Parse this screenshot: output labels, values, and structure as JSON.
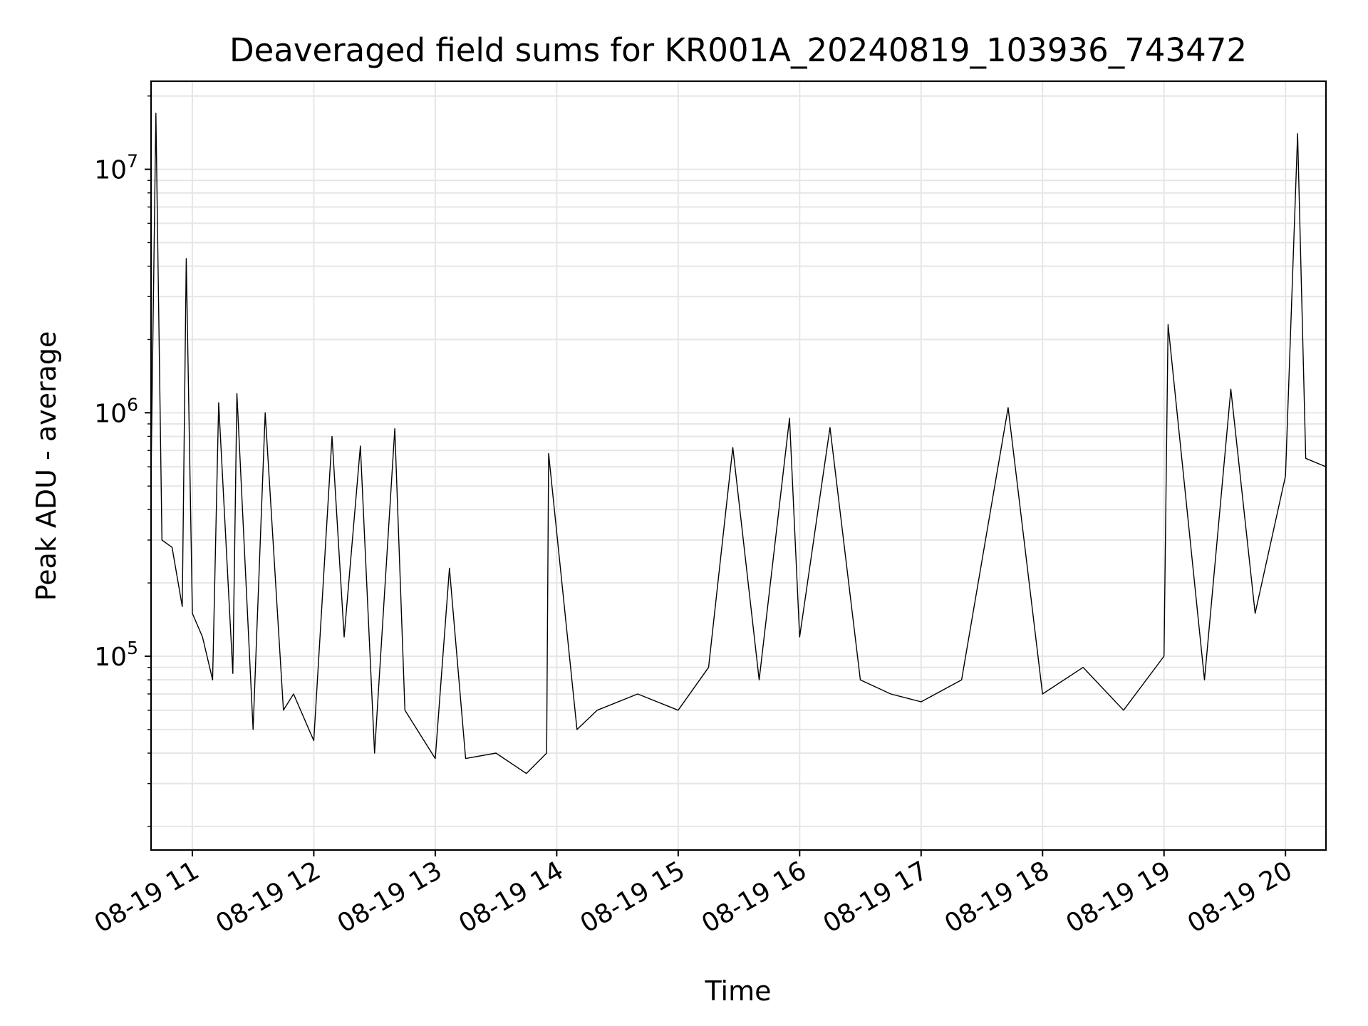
{
  "chart_data": {
    "type": "line",
    "title": "Deaveraged field sums for KR001A_20240819_103936_743472",
    "xlabel": "Time",
    "ylabel": "Peak ADU - average",
    "x_domain": [
      "2024-08-19T10:39:36",
      "2024-08-19T20:20:00"
    ],
    "ylim": [
      16000,
      23000000
    ],
    "yscale": "log",
    "grid": true,
    "x_ticks": [
      {
        "time": "2024-08-19T11:00:00",
        "label": "08-19 11"
      },
      {
        "time": "2024-08-19T12:00:00",
        "label": "08-19 12"
      },
      {
        "time": "2024-08-19T13:00:00",
        "label": "08-19 13"
      },
      {
        "time": "2024-08-19T14:00:00",
        "label": "08-19 14"
      },
      {
        "time": "2024-08-19T15:00:00",
        "label": "08-19 15"
      },
      {
        "time": "2024-08-19T16:00:00",
        "label": "08-19 16"
      },
      {
        "time": "2024-08-19T17:00:00",
        "label": "08-19 17"
      },
      {
        "time": "2024-08-19T18:00:00",
        "label": "08-19 18"
      },
      {
        "time": "2024-08-19T19:00:00",
        "label": "08-19 19"
      },
      {
        "time": "2024-08-19T20:00:00",
        "label": "08-19 20"
      }
    ],
    "y_ticks": [
      {
        "value": 100000,
        "base": "10",
        "exp": "5"
      },
      {
        "value": 1000000,
        "base": "10",
        "exp": "6"
      },
      {
        "value": 10000000,
        "base": "10",
        "exp": "7"
      }
    ],
    "series": [
      {
        "color": "#000000",
        "points": [
          [
            "2024-08-19T10:39:36",
            550000
          ],
          [
            "2024-08-19T10:42:00",
            17000000
          ],
          [
            "2024-08-19T10:45:00",
            300000
          ],
          [
            "2024-08-19T10:50:00",
            280000
          ],
          [
            "2024-08-19T10:55:00",
            160000
          ],
          [
            "2024-08-19T10:57:00",
            4300000
          ],
          [
            "2024-08-19T11:00:00",
            150000
          ],
          [
            "2024-08-19T11:05:00",
            120000
          ],
          [
            "2024-08-19T11:10:00",
            80000
          ],
          [
            "2024-08-19T11:13:00",
            1100000
          ],
          [
            "2024-08-19T11:20:00",
            85000
          ],
          [
            "2024-08-19T11:22:00",
            1200000
          ],
          [
            "2024-08-19T11:30:00",
            50000
          ],
          [
            "2024-08-19T11:36:00",
            1000000
          ],
          [
            "2024-08-19T11:45:00",
            60000
          ],
          [
            "2024-08-19T11:50:00",
            70000
          ],
          [
            "2024-08-19T12:00:00",
            45000
          ],
          [
            "2024-08-19T12:09:00",
            800000
          ],
          [
            "2024-08-19T12:15:00",
            120000
          ],
          [
            "2024-08-19T12:23:00",
            730000
          ],
          [
            "2024-08-19T12:30:00",
            40000
          ],
          [
            "2024-08-19T12:40:00",
            860000
          ],
          [
            "2024-08-19T12:45:00",
            60000
          ],
          [
            "2024-08-19T13:00:00",
            38000
          ],
          [
            "2024-08-19T13:07:00",
            230000
          ],
          [
            "2024-08-19T13:15:00",
            38000
          ],
          [
            "2024-08-19T13:30:00",
            40000
          ],
          [
            "2024-08-19T13:45:00",
            33000
          ],
          [
            "2024-08-19T13:55:00",
            40000
          ],
          [
            "2024-08-19T13:56:00",
            680000
          ],
          [
            "2024-08-19T14:10:00",
            50000
          ],
          [
            "2024-08-19T14:20:00",
            60000
          ],
          [
            "2024-08-19T14:40:00",
            70000
          ],
          [
            "2024-08-19T15:00:00",
            60000
          ],
          [
            "2024-08-19T15:15:00",
            90000
          ],
          [
            "2024-08-19T15:27:00",
            720000
          ],
          [
            "2024-08-19T15:40:00",
            80000
          ],
          [
            "2024-08-19T15:55:00",
            950000
          ],
          [
            "2024-08-19T16:00:00",
            120000
          ],
          [
            "2024-08-19T16:15:00",
            870000
          ],
          [
            "2024-08-19T16:30:00",
            80000
          ],
          [
            "2024-08-19T16:45:00",
            70000
          ],
          [
            "2024-08-19T17:00:00",
            65000
          ],
          [
            "2024-08-19T17:20:00",
            80000
          ],
          [
            "2024-08-19T17:43:00",
            1050000
          ],
          [
            "2024-08-19T18:00:00",
            70000
          ],
          [
            "2024-08-19T18:20:00",
            90000
          ],
          [
            "2024-08-19T18:40:00",
            60000
          ],
          [
            "2024-08-19T19:00:00",
            100000
          ],
          [
            "2024-08-19T19:02:00",
            2300000
          ],
          [
            "2024-08-19T19:20:00",
            80000
          ],
          [
            "2024-08-19T19:33:00",
            1250000
          ],
          [
            "2024-08-19T19:45:00",
            150000
          ],
          [
            "2024-08-19T20:00:00",
            550000
          ],
          [
            "2024-08-19T20:06:00",
            14000000
          ],
          [
            "2024-08-19T20:10:00",
            650000
          ],
          [
            "2024-08-19T20:20:00",
            600000
          ]
        ]
      }
    ]
  }
}
